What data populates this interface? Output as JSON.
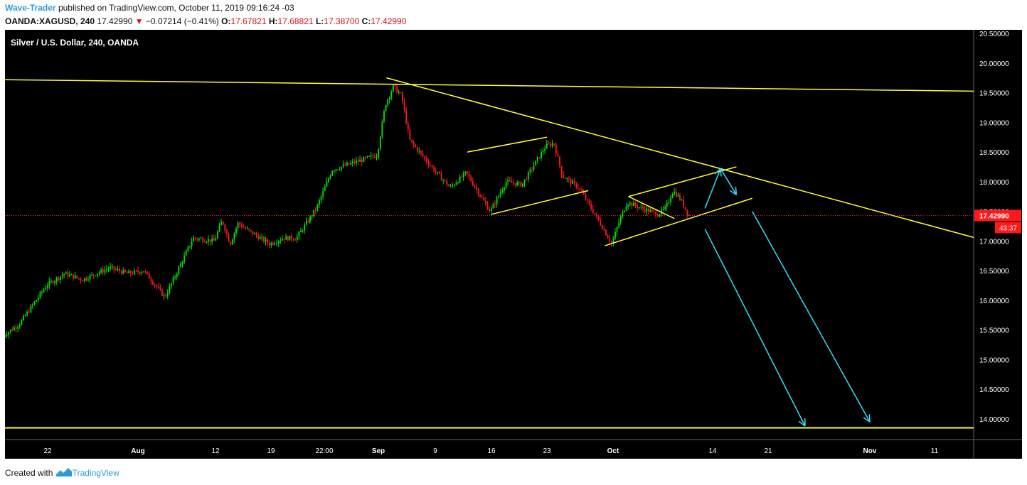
{
  "header": {
    "author": "Wave-Trader",
    "published": "published on TradingView.com, October 11, 2019 09:16:24 -03",
    "symbol": "OANDA:XAGUSD, 240",
    "last": "17.42990",
    "change_arrow": "▼",
    "change": "−0.07214 (−0.41%)",
    "o_label": "O:",
    "o_value": "17.67821",
    "h_label": "H:",
    "h_value": "17.68821",
    "l_label": "L:",
    "l_value": "17.38700",
    "c_label": "C:",
    "c_value": "17.42990"
  },
  "footer": {
    "created_with": "Created with",
    "brand": "TradingView",
    "logo_icon": "tradingview-logo-icon"
  },
  "colors": {
    "background": "#000000",
    "up_candle": "#00e600",
    "down_candle": "#ff1a1a",
    "trendline": "#ffff33",
    "projection": "#33ddff",
    "price_tag": "#ff1a1a",
    "axis_text": "#ffffff"
  },
  "chart_data": {
    "type": "candlestick",
    "title": "Silver / U.S. Dollar, 240, OANDA",
    "y_axis_labels": [
      "20.50000",
      "20.00000",
      "19.50000",
      "19.00000",
      "18.50000",
      "18.00000",
      "17.50000",
      "17.00000",
      "16.50000",
      "16.00000",
      "15.50000",
      "15.00000",
      "14.50000",
      "14.00000"
    ],
    "x_axis_labels": [
      "22",
      "Aug",
      "12",
      "19",
      "22:00",
      "Sep",
      "9",
      "16",
      "23",
      "Oct",
      "14",
      "21",
      "Nov",
      "11"
    ],
    "ylim": [
      13.6,
      20.6
    ],
    "last_price_label": "17.42990",
    "countdown_label": "43:37",
    "price_path": [
      [
        "Jul 17",
        15.38
      ],
      [
        "Jul 19",
        15.6
      ],
      [
        "Jul 22",
        16.25
      ],
      [
        "Jul 24",
        16.45
      ],
      [
        "Jul 26",
        16.35
      ],
      [
        "Jul 29",
        16.55
      ],
      [
        "Jul 31",
        16.45
      ],
      [
        "Aug 2",
        16.5
      ],
      [
        "Aug 5",
        16.05
      ],
      [
        "Aug 7",
        16.55
      ],
      [
        "Aug 9",
        17.05
      ],
      [
        "Aug 12",
        17.0
      ],
      [
        "Aug 13",
        17.35
      ],
      [
        "Aug 14",
        16.95
      ],
      [
        "Aug 15",
        17.3
      ],
      [
        "Aug 16",
        17.2
      ],
      [
        "Aug 19",
        16.95
      ],
      [
        "Aug 21",
        17.05
      ],
      [
        "Aug 23",
        17.05
      ],
      [
        "Aug 26",
        17.55
      ],
      [
        "Aug 28",
        18.2
      ],
      [
        "Aug 30",
        18.3
      ],
      [
        "Sep 2",
        18.45
      ],
      [
        "Sep 3",
        19.3
      ],
      [
        "Sep 4",
        19.6
      ],
      [
        "Sep 5",
        19.45
      ],
      [
        "Sep 6",
        18.7
      ],
      [
        "Sep 9",
        18.2
      ],
      [
        "Sep 11",
        17.9
      ],
      [
        "Sep 13",
        18.15
      ],
      [
        "Sep 16",
        17.5
      ],
      [
        "Sep 18",
        18.0
      ],
      [
        "Sep 20",
        17.95
      ],
      [
        "Sep 23",
        18.6
      ],
      [
        "Sep 24",
        18.65
      ],
      [
        "Sep 25",
        18.1
      ],
      [
        "Sep 27",
        17.9
      ],
      [
        "Sep 30",
        17.2
      ],
      [
        "Oct 1",
        16.95
      ],
      [
        "Oct 2",
        17.35
      ],
      [
        "Oct 3",
        17.65
      ],
      [
        "Oct 4",
        17.6
      ],
      [
        "Oct 7",
        17.45
      ],
      [
        "Oct 8",
        17.55
      ],
      [
        "Oct 9",
        17.85
      ],
      [
        "Oct 10",
        17.7
      ],
      [
        "Oct 11",
        17.43
      ]
    ],
    "drawings": {
      "horizontal_support": 13.85,
      "upper_resistance_start": [
        "Jul 17",
        19.72
      ],
      "upper_resistance_end": [
        "Nov 14",
        19.53
      ],
      "descending_trendline_start": [
        "Sep 3",
        19.75
      ],
      "descending_trendline_end": [
        "Nov 14",
        17.15
      ],
      "channel_1": [
        [
          [
            "Sep 13",
            18.5
          ],
          [
            "Sep 23",
            18.75
          ]
        ],
        [
          [
            "Sep 16",
            17.45
          ],
          [
            "Sep 28",
            17.85
          ]
        ]
      ],
      "channel_2": [
        [
          [
            "Oct 3",
            17.75
          ],
          [
            "Oct 17",
            18.25
          ]
        ],
        [
          [
            "Sep 30",
            16.92
          ],
          [
            "Oct 19",
            17.72
          ]
        ]
      ],
      "projection_arrows": [
        [
          [
            "Oct 13",
            17.55
          ],
          [
            "Oct 15",
            18.22
          ]
        ],
        [
          [
            "Oct 15",
            18.22
          ],
          [
            "Oct 17",
            17.78
          ]
        ],
        [
          [
            "Oct 13",
            17.2
          ],
          [
            "Oct 25",
            13.88
          ]
        ],
        [
          [
            "Oct 19",
            17.5
          ],
          [
            "Nov 1",
            13.95
          ]
        ]
      ]
    }
  }
}
